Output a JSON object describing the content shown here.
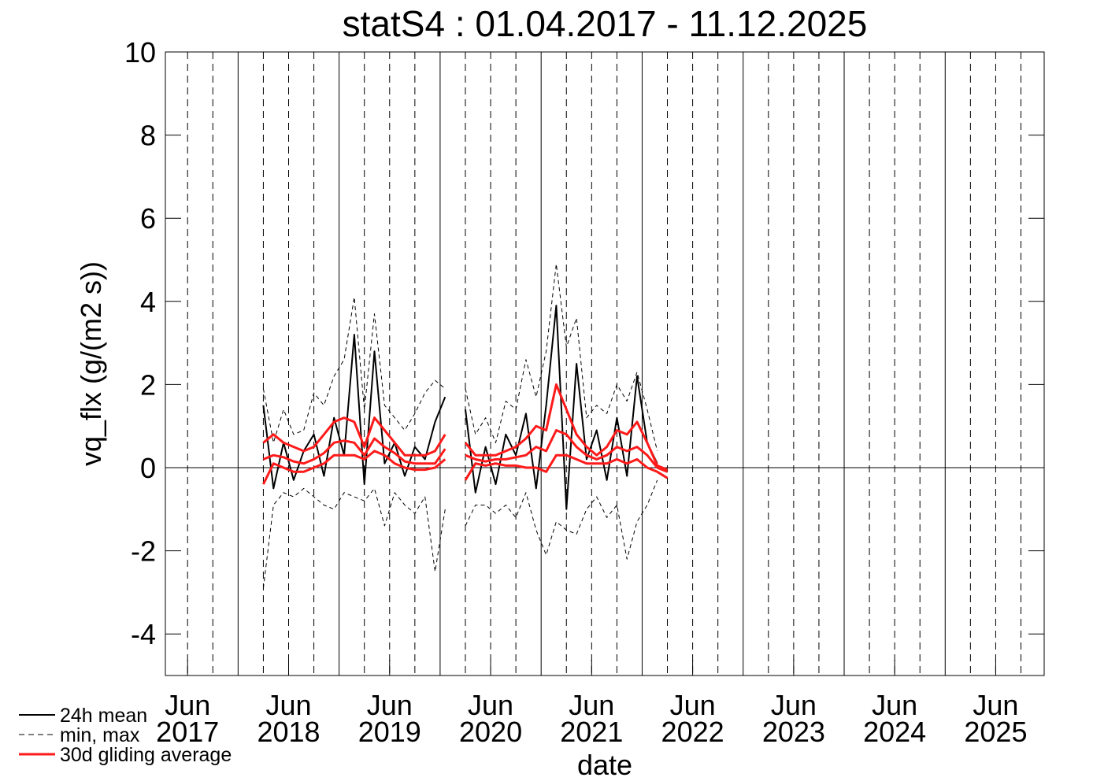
{
  "chart_data": {
    "type": "line",
    "title": "statS4 : 01.04.2017 - 11.12.2025",
    "x_label": "date",
    "y_label": "vq_flx (g/(m2 s))",
    "xlim": [
      2017.28,
      2025.98
    ],
    "ylim": [
      -5,
      10
    ],
    "yticks": [
      -4,
      -2,
      0,
      2,
      4,
      6,
      8,
      10
    ],
    "xticks": [
      {
        "value": 2017.5,
        "label": "Jun 2017"
      },
      {
        "value": 2018.5,
        "label": "Jun 2018"
      },
      {
        "value": 2019.5,
        "label": "Jun 2019"
      },
      {
        "value": 2020.5,
        "label": "Jun 2020"
      },
      {
        "value": 2021.5,
        "label": "Jun 2021"
      },
      {
        "value": 2022.5,
        "label": "Jun 2022"
      },
      {
        "value": 2023.5,
        "label": "Jun 2023"
      },
      {
        "value": 2024.5,
        "label": "Jun 2024"
      },
      {
        "value": 2025.5,
        "label": "Jun 2025"
      }
    ],
    "xgrid_major": [
      2018,
      2019,
      2020,
      2021,
      2022,
      2023,
      2024,
      2025
    ],
    "xgrid_minor": [
      2017.5,
      2017.75,
      2018.25,
      2018.5,
      2018.75,
      2019.25,
      2019.5,
      2019.75,
      2020.25,
      2020.5,
      2020.75,
      2021.25,
      2021.5,
      2021.75,
      2022.25,
      2022.5,
      2022.75,
      2023.25,
      2023.5,
      2023.75,
      2024.25,
      2024.5,
      2024.75,
      2025.25,
      2025.5,
      2025.75
    ],
    "hline": 0,
    "legend": "bottom-left",
    "x": [
      2018.25,
      2018.35,
      2018.45,
      2018.55,
      2018.65,
      2018.75,
      2018.85,
      2018.95,
      2019.05,
      2019.15,
      2019.25,
      2019.35,
      2019.45,
      2019.55,
      2019.65,
      2019.75,
      2019.85,
      2019.95,
      2020.05,
      2020.15,
      2020.25,
      2020.35,
      2020.45,
      2020.55,
      2020.65,
      2020.75,
      2020.85,
      2020.95,
      2021.05,
      2021.15,
      2021.25,
      2021.35,
      2021.45,
      2021.55,
      2021.65,
      2021.75,
      2021.85,
      2021.95,
      2022.05,
      2022.15,
      2022.25
    ],
    "series": [
      {
        "name": "24h mean",
        "color": "#000000",
        "dash": false,
        "width": 2,
        "values": [
          1.5,
          -0.5,
          0.6,
          -0.3,
          0.4,
          0.8,
          -0.2,
          1.2,
          0.3,
          3.2,
          -0.4,
          2.8,
          0.1,
          0.6,
          -0.2,
          0.5,
          0.2,
          1.1,
          1.7,
          null,
          1.4,
          -0.6,
          0.5,
          -0.4,
          0.8,
          0.3,
          1.3,
          -0.5,
          1.5,
          3.9,
          -1.0,
          2.5,
          0.2,
          0.9,
          -0.3,
          1.2,
          -0.2,
          2.2,
          0.6,
          0.1,
          null
        ]
      },
      {
        "name": "min, max",
        "color": "#000000",
        "dash": true,
        "width": 1,
        "values": [
          1.9,
          0.6,
          1.4,
          0.8,
          0.9,
          1.8,
          1.5,
          2.2,
          2.6,
          4.1,
          1.4,
          3.7,
          1.5,
          1.2,
          0.9,
          1.3,
          1.8,
          2.1,
          1.9,
          null,
          1.9,
          0.8,
          1.2,
          0.6,
          1.6,
          1.4,
          2.6,
          1.7,
          2.8,
          4.9,
          2.9,
          3.6,
          1.2,
          1.5,
          1.3,
          2.0,
          1.6,
          2.3,
          1.4,
          0.4,
          null
        ],
        "values_low": [
          -2.9,
          -0.9,
          -0.6,
          -0.7,
          -0.5,
          -0.7,
          -0.9,
          -1.0,
          -0.6,
          -0.7,
          -0.8,
          -0.5,
          -1.4,
          -0.6,
          -0.9,
          -1.1,
          -0.7,
          -2.5,
          -1.0,
          null,
          -1.4,
          -0.9,
          -0.9,
          -1.1,
          -0.9,
          -1.2,
          -0.6,
          -1.5,
          -2.1,
          -1.3,
          -1.5,
          -1.6,
          -1.0,
          -0.7,
          -1.2,
          -0.9,
          -2.2,
          -1.3,
          -0.9,
          -0.3,
          null
        ]
      },
      {
        "name": "30d gliding average",
        "color": "#ff1a1a",
        "dash": false,
        "width": 3,
        "values": [
          0.2,
          0.3,
          0.25,
          0.15,
          0.1,
          0.2,
          0.35,
          0.6,
          0.65,
          0.6,
          0.3,
          0.7,
          0.5,
          0.35,
          0.15,
          0.1,
          0.1,
          0.1,
          0.45,
          null,
          0.3,
          0.2,
          0.15,
          0.2,
          0.2,
          0.25,
          0.3,
          0.5,
          0.4,
          0.9,
          0.8,
          0.5,
          0.3,
          0.2,
          0.3,
          0.5,
          0.4,
          0.5,
          0.3,
          0.0,
          -0.1
        ],
        "values_high": [
          0.6,
          0.8,
          0.6,
          0.5,
          0.4,
          0.5,
          0.8,
          1.1,
          1.2,
          1.1,
          0.5,
          1.2,
          0.9,
          0.6,
          0.3,
          0.3,
          0.3,
          0.4,
          0.8,
          null,
          0.6,
          0.3,
          0.3,
          0.3,
          0.4,
          0.5,
          0.7,
          1.0,
          0.9,
          2.0,
          1.4,
          0.8,
          0.5,
          0.3,
          0.5,
          0.9,
          0.8,
          1.1,
          0.6,
          0.05,
          -0.05
        ],
        "values_low": [
          -0.4,
          0.1,
          0.0,
          -0.1,
          -0.1,
          0.0,
          0.1,
          0.3,
          0.3,
          0.3,
          0.2,
          0.4,
          0.3,
          0.1,
          0.0,
          -0.05,
          -0.05,
          0.0,
          0.2,
          null,
          -0.3,
          0.1,
          0.05,
          0.1,
          0.05,
          0.05,
          0.0,
          0.0,
          -0.1,
          0.3,
          0.3,
          0.2,
          0.1,
          0.1,
          0.1,
          0.2,
          0.1,
          0.2,
          0.0,
          -0.1,
          -0.25
        ]
      }
    ]
  }
}
